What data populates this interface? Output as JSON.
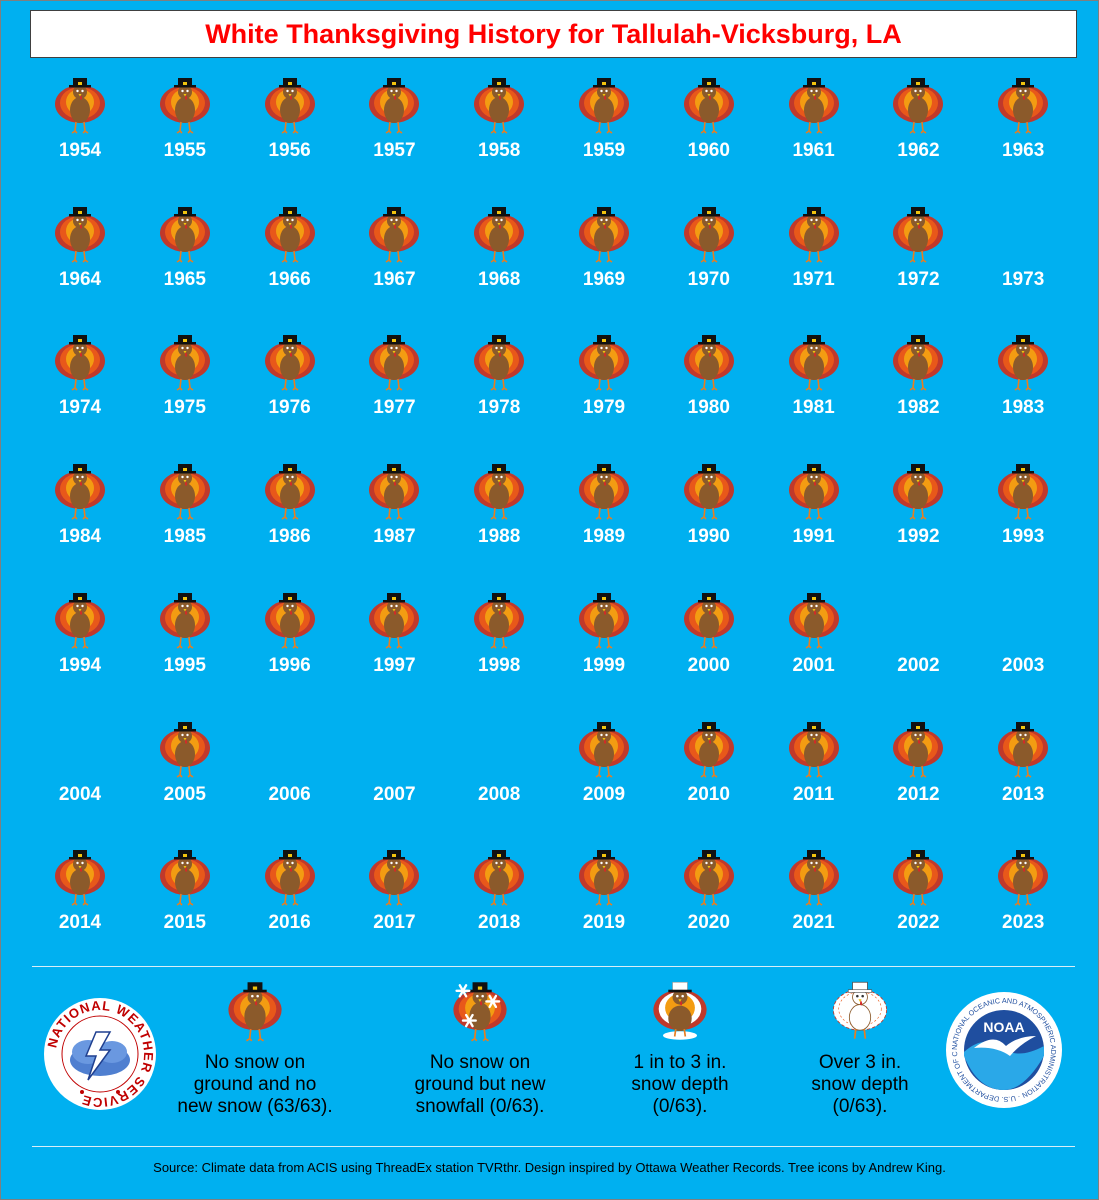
{
  "title": "White Thanksgiving History for Tallulah-Vicksburg, LA",
  "colors": {
    "background": "#00B0F0",
    "title_text": "#FF0000",
    "year_text": "#FFFFFF"
  },
  "chart_data": {
    "type": "table",
    "title": "White Thanksgiving History for Tallulah-Vicksburg, LA",
    "categories": [
      "no-snow",
      "new-snowfall",
      "1-3-in",
      "over-3-in"
    ],
    "years": [
      {
        "year": "1954",
        "status": "no-snow"
      },
      {
        "year": "1955",
        "status": "no-snow"
      },
      {
        "year": "1956",
        "status": "no-snow"
      },
      {
        "year": "1957",
        "status": "no-snow"
      },
      {
        "year": "1958",
        "status": "no-snow"
      },
      {
        "year": "1959",
        "status": "no-snow"
      },
      {
        "year": "1960",
        "status": "no-snow"
      },
      {
        "year": "1961",
        "status": "no-snow"
      },
      {
        "year": "1962",
        "status": "no-snow"
      },
      {
        "year": "1963",
        "status": "no-snow"
      },
      {
        "year": "1964",
        "status": "no-snow"
      },
      {
        "year": "1965",
        "status": "no-snow"
      },
      {
        "year": "1966",
        "status": "no-snow"
      },
      {
        "year": "1967",
        "status": "no-snow"
      },
      {
        "year": "1968",
        "status": "no-snow"
      },
      {
        "year": "1969",
        "status": "no-snow"
      },
      {
        "year": "1970",
        "status": "no-snow"
      },
      {
        "year": "1971",
        "status": "no-snow"
      },
      {
        "year": "1972",
        "status": "no-snow"
      },
      {
        "year": "1973",
        "status": "missing"
      },
      {
        "year": "1974",
        "status": "no-snow"
      },
      {
        "year": "1975",
        "status": "no-snow"
      },
      {
        "year": "1976",
        "status": "no-snow"
      },
      {
        "year": "1977",
        "status": "no-snow"
      },
      {
        "year": "1978",
        "status": "no-snow"
      },
      {
        "year": "1979",
        "status": "no-snow"
      },
      {
        "year": "1980",
        "status": "no-snow"
      },
      {
        "year": "1981",
        "status": "no-snow"
      },
      {
        "year": "1982",
        "status": "no-snow"
      },
      {
        "year": "1983",
        "status": "no-snow"
      },
      {
        "year": "1984",
        "status": "no-snow"
      },
      {
        "year": "1985",
        "status": "no-snow"
      },
      {
        "year": "1986",
        "status": "no-snow"
      },
      {
        "year": "1987",
        "status": "no-snow"
      },
      {
        "year": "1988",
        "status": "no-snow"
      },
      {
        "year": "1989",
        "status": "no-snow"
      },
      {
        "year": "1990",
        "status": "no-snow"
      },
      {
        "year": "1991",
        "status": "no-snow"
      },
      {
        "year": "1992",
        "status": "no-snow"
      },
      {
        "year": "1993",
        "status": "no-snow"
      },
      {
        "year": "1994",
        "status": "no-snow"
      },
      {
        "year": "1995",
        "status": "no-snow"
      },
      {
        "year": "1996",
        "status": "no-snow"
      },
      {
        "year": "1997",
        "status": "no-snow"
      },
      {
        "year": "1998",
        "status": "no-snow"
      },
      {
        "year": "1999",
        "status": "no-snow"
      },
      {
        "year": "2000",
        "status": "no-snow"
      },
      {
        "year": "2001",
        "status": "no-snow"
      },
      {
        "year": "2002",
        "status": "missing"
      },
      {
        "year": "2003",
        "status": "missing"
      },
      {
        "year": "2004",
        "status": "missing"
      },
      {
        "year": "2005",
        "status": "no-snow"
      },
      {
        "year": "2006",
        "status": "missing"
      },
      {
        "year": "2007",
        "status": "missing"
      },
      {
        "year": "2008",
        "status": "missing"
      },
      {
        "year": "2009",
        "status": "no-snow"
      },
      {
        "year": "2010",
        "status": "no-snow"
      },
      {
        "year": "2011",
        "status": "no-snow"
      },
      {
        "year": "2012",
        "status": "no-snow"
      },
      {
        "year": "2013",
        "status": "no-snow"
      },
      {
        "year": "2014",
        "status": "no-snow"
      },
      {
        "year": "2015",
        "status": "no-snow"
      },
      {
        "year": "2016",
        "status": "no-snow"
      },
      {
        "year": "2017",
        "status": "no-snow"
      },
      {
        "year": "2018",
        "status": "no-snow"
      },
      {
        "year": "2019",
        "status": "no-snow"
      },
      {
        "year": "2020",
        "status": "no-snow"
      },
      {
        "year": "2021",
        "status": "no-snow"
      },
      {
        "year": "2022",
        "status": "no-snow"
      },
      {
        "year": "2023",
        "status": "no-snow"
      }
    ]
  },
  "legend": {
    "no_snow": {
      "line1": "No snow on",
      "line2": "ground and no",
      "line3": "new snow (63/63)."
    },
    "new_snowfall": {
      "line1": "No snow on",
      "line2": "ground but new",
      "line3": "snowfall (0/63)."
    },
    "one_to_three": {
      "line1": "1 in to 3 in.",
      "line2": "snow depth",
      "line3": "(0/63)."
    },
    "over_three": {
      "line1": "Over 3 in.",
      "line2": "snow depth",
      "line3": "(0/63)."
    }
  },
  "logos": {
    "nws_text": "NATIONAL WEATHER SERVICE",
    "noaa_text": "NOAA",
    "noaa_ring_text": "NATIONAL OCEANIC AND ATMOSPHERIC ADMINISTRATION · U.S. DEPARTMENT OF COMMERCE"
  },
  "source": "Source: Climate data from ACIS using ThreadEx station TVRthr. Design inspired by Ottawa Weather Records. Tree icons by Andrew King."
}
